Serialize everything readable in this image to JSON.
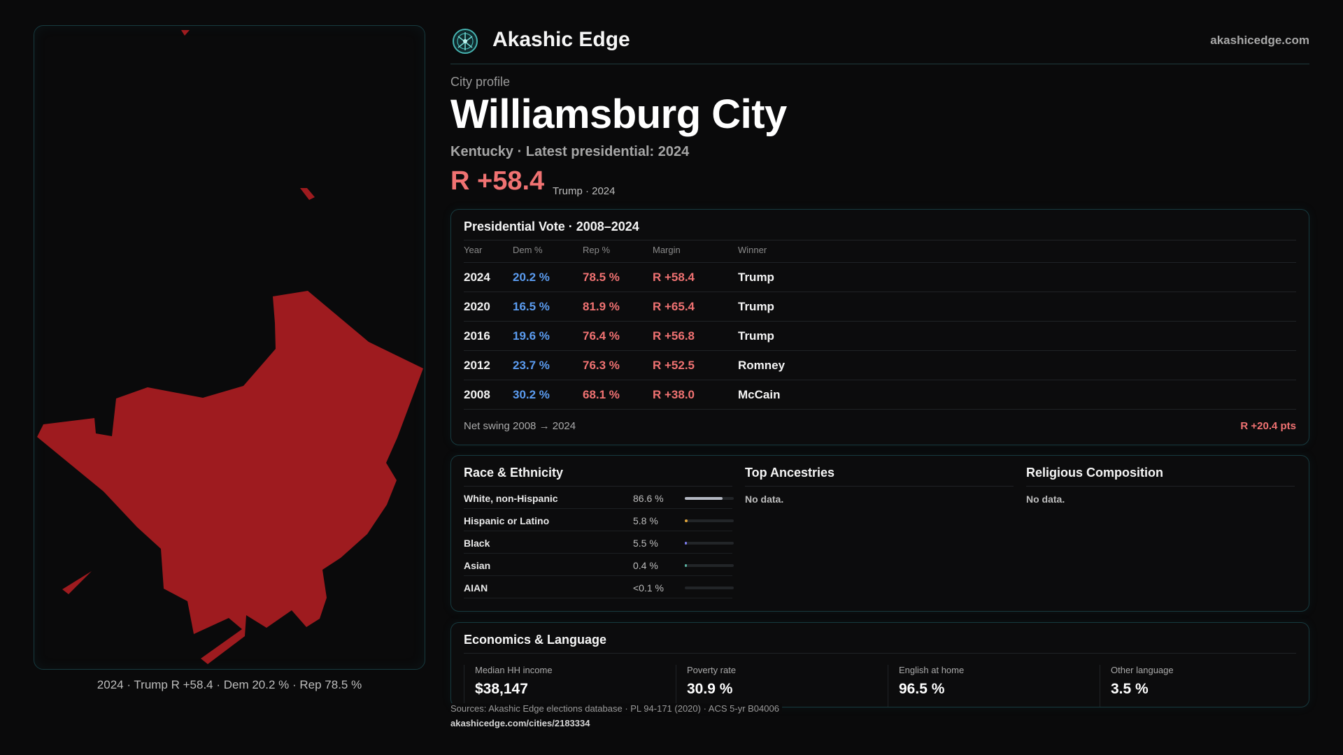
{
  "map": {
    "fill_color": "#9e1b1f",
    "caption": "2024 · Trump R +58.4 · Dem 20.2 % · Rep 78.5 %"
  },
  "header": {
    "brand": "Akashic Edge",
    "site": "akashicedge.com",
    "logo_icon": "akashic-edge-logo-icon"
  },
  "profile": {
    "eyebrow": "City profile",
    "title": "Williamsburg City",
    "subline": "Kentucky · Latest presidential: 2024",
    "margin": "R +58.4",
    "margin_note": "Trump · 2024"
  },
  "vote": {
    "title": "Presidential Vote · 2008–2024",
    "columns": [
      "Year",
      "Dem %",
      "Rep %",
      "Margin",
      "Winner"
    ],
    "rows": [
      {
        "year": "2024",
        "dem": "20.2 %",
        "rep": "78.5 %",
        "margin": "R +58.4",
        "winner": "Trump"
      },
      {
        "year": "2020",
        "dem": "16.5 %",
        "rep": "81.9 %",
        "margin": "R +65.4",
        "winner": "Trump"
      },
      {
        "year": "2016",
        "dem": "19.6 %",
        "rep": "76.4 %",
        "margin": "R +56.8",
        "winner": "Trump"
      },
      {
        "year": "2012",
        "dem": "23.7 %",
        "rep": "76.3 %",
        "margin": "R +52.5",
        "winner": "Romney"
      },
      {
        "year": "2008",
        "dem": "30.2 %",
        "rep": "68.1 %",
        "margin": "R +38.0",
        "winner": "McCain"
      }
    ],
    "swing_label": "Net swing 2008 → 2024",
    "swing_value": "R +20.4 pts"
  },
  "race": {
    "title": "Race & Ethnicity",
    "rows": [
      {
        "label": "White, non-Hispanic",
        "pct": "86.6 %",
        "share": 0.866,
        "color": "#b4b8c2"
      },
      {
        "label": "Hispanic or Latino",
        "pct": "5.8 %",
        "share": 0.058,
        "color": "#e0a43a"
      },
      {
        "label": "Black",
        "pct": "5.5 %",
        "share": 0.055,
        "color": "#7d7df0"
      },
      {
        "label": "Asian",
        "pct": "0.4 %",
        "share": 0.004,
        "color": "#5ab0a0"
      },
      {
        "label": "AIAN",
        "pct": "<0.1 %",
        "share": 0.0,
        "color": "#888888"
      }
    ]
  },
  "ancestries": {
    "title": "Top Ancestries",
    "empty": "No data."
  },
  "religion": {
    "title": "Religious Composition",
    "empty": "No data."
  },
  "econ": {
    "title": "Economics & Language",
    "stats": [
      {
        "label": "Median HH income",
        "value": "$38,147"
      },
      {
        "label": "Poverty rate",
        "value": "30.9 %"
      },
      {
        "label": "English at home",
        "value": "96.5 %"
      },
      {
        "label": "Other language",
        "value": "3.5 %"
      }
    ]
  },
  "footer": {
    "sources": "Sources: Akashic Edge elections database · PL 94-171 (2020) · ACS 5-yr B04006",
    "url": "akashicedge.com/cities/2183334"
  }
}
